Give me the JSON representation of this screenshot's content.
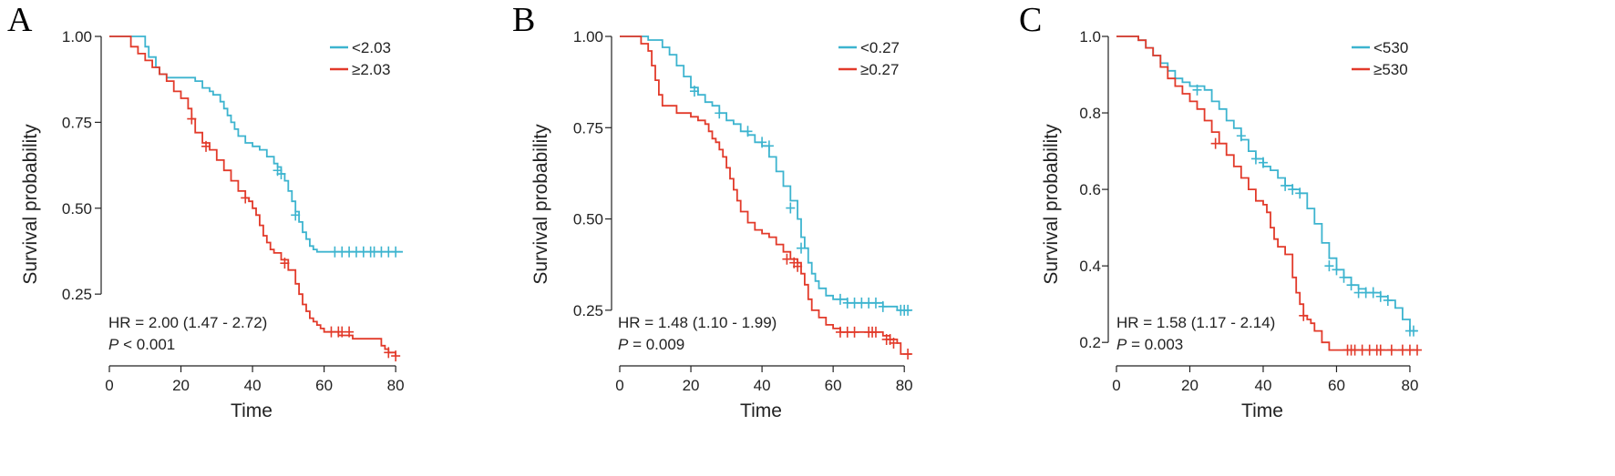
{
  "colors": {
    "low": "#3db4cf",
    "high": "#e23a2a",
    "axis": "#222222"
  },
  "chart_data": [
    {
      "type": "line",
      "panel": "A",
      "xlabel": "Time",
      "ylabel": "Survival probability",
      "xlim": [
        0,
        82
      ],
      "ylim": [
        0.065,
        1.0
      ],
      "xticks": [
        0,
        20,
        40,
        60,
        80
      ],
      "xtick_labels": [
        "0",
        "20",
        "40",
        "60",
        "80"
      ],
      "yticks": [
        1.0,
        0.75,
        0.5,
        0.25
      ],
      "ytick_labels": [
        "1.00",
        "0.75",
        "0.50",
        "0.25"
      ],
      "legend_position": "top-right",
      "series": [
        {
          "name": "<2.03",
          "color_key": "low",
          "x": [
            0,
            9,
            10,
            11,
            13,
            14,
            16,
            24,
            26,
            28,
            29,
            31,
            32,
            33,
            34,
            35,
            36,
            38,
            40,
            42,
            44,
            46,
            47,
            48,
            49,
            50,
            51,
            52,
            53,
            54,
            55,
            56,
            57,
            58,
            82
          ],
          "y": [
            1.0,
            1.0,
            0.97,
            0.94,
            0.91,
            0.89,
            0.88,
            0.87,
            0.85,
            0.84,
            0.83,
            0.81,
            0.79,
            0.77,
            0.75,
            0.73,
            0.71,
            0.69,
            0.68,
            0.67,
            0.65,
            0.63,
            0.62,
            0.6,
            0.58,
            0.55,
            0.52,
            0.49,
            0.46,
            0.43,
            0.41,
            0.39,
            0.38,
            0.373,
            0.373
          ],
          "censored": [
            [
              47,
              0.61
            ],
            [
              48,
              0.6
            ],
            [
              52,
              0.48
            ],
            [
              63,
              0.373
            ],
            [
              65,
              0.373
            ],
            [
              67,
              0.373
            ],
            [
              69,
              0.373
            ],
            [
              71,
              0.373
            ],
            [
              73,
              0.373
            ],
            [
              74,
              0.373
            ],
            [
              76,
              0.373
            ],
            [
              78,
              0.373
            ],
            [
              80,
              0.373
            ]
          ]
        },
        {
          "name": "≥2.03",
          "color_key": "high",
          "x": [
            0,
            4,
            6,
            8,
            10,
            12,
            14,
            16,
            18,
            20,
            22,
            23,
            24,
            26,
            28,
            30,
            32,
            34,
            36,
            38,
            39,
            40,
            41,
            42,
            43,
            44,
            45,
            46,
            48,
            50,
            52,
            53,
            54,
            55,
            56,
            57,
            58,
            59,
            60,
            62,
            64,
            66,
            68,
            72,
            76,
            77,
            78,
            80
          ],
          "y": [
            1.0,
            1.0,
            0.97,
            0.95,
            0.93,
            0.91,
            0.89,
            0.87,
            0.84,
            0.82,
            0.79,
            0.76,
            0.72,
            0.69,
            0.67,
            0.64,
            0.61,
            0.58,
            0.55,
            0.53,
            0.52,
            0.5,
            0.48,
            0.45,
            0.42,
            0.4,
            0.38,
            0.37,
            0.35,
            0.32,
            0.28,
            0.25,
            0.22,
            0.2,
            0.18,
            0.17,
            0.16,
            0.15,
            0.14,
            0.14,
            0.13,
            0.13,
            0.12,
            0.12,
            0.1,
            0.09,
            0.08,
            0.07
          ],
          "censored": [
            [
              23,
              0.76
            ],
            [
              27,
              0.68
            ],
            [
              38,
              0.53
            ],
            [
              49,
              0.34
            ],
            [
              62,
              0.14
            ],
            [
              64,
              0.14
            ],
            [
              65,
              0.14
            ],
            [
              67,
              0.14
            ],
            [
              78,
              0.08
            ],
            [
              80,
              0.07
            ]
          ]
        }
      ],
      "annotations": {
        "hr": "HR = 2.00 (1.47 -  2.72)",
        "p_label": "P",
        "p_value": " < 0.001"
      }
    },
    {
      "type": "line",
      "panel": "B",
      "xlabel": "Time",
      "ylabel": "Survival probability",
      "xlim": [
        0,
        82
      ],
      "ylim": [
        0.12,
        1.0
      ],
      "xticks": [
        0,
        20,
        40,
        60,
        80
      ],
      "xtick_labels": [
        "0",
        "20",
        "40",
        "60",
        "80"
      ],
      "yticks": [
        1.0,
        0.75,
        0.5,
        0.25
      ],
      "ytick_labels": [
        "1.00",
        "0.75",
        "0.50",
        "0.25"
      ],
      "legend_position": "top-right",
      "series": [
        {
          "name": "<0.27",
          "color_key": "low",
          "x": [
            0,
            4,
            8,
            12,
            14,
            16,
            18,
            20,
            22,
            24,
            26,
            28,
            30,
            32,
            34,
            36,
            38,
            40,
            42,
            44,
            46,
            48,
            50,
            51,
            52,
            53,
            54,
            55,
            56,
            58,
            60,
            62,
            64,
            66,
            70,
            74,
            78,
            82
          ],
          "y": [
            1.0,
            1.0,
            0.99,
            0.97,
            0.95,
            0.92,
            0.89,
            0.86,
            0.84,
            0.82,
            0.81,
            0.79,
            0.77,
            0.76,
            0.74,
            0.73,
            0.71,
            0.7,
            0.67,
            0.63,
            0.59,
            0.55,
            0.5,
            0.45,
            0.42,
            0.38,
            0.35,
            0.33,
            0.31,
            0.29,
            0.28,
            0.28,
            0.27,
            0.27,
            0.27,
            0.26,
            0.25,
            0.25
          ],
          "censored": [
            [
              21,
              0.85
            ],
            [
              28,
              0.79
            ],
            [
              36,
              0.74
            ],
            [
              40,
              0.71
            ],
            [
              42,
              0.7
            ],
            [
              48,
              0.53
            ],
            [
              51,
              0.42
            ],
            [
              62,
              0.28
            ],
            [
              64,
              0.27
            ],
            [
              66,
              0.27
            ],
            [
              68,
              0.27
            ],
            [
              70,
              0.27
            ],
            [
              72,
              0.27
            ],
            [
              74,
              0.26
            ],
            [
              79,
              0.25
            ],
            [
              80,
              0.25
            ],
            [
              81,
              0.25
            ]
          ]
        },
        {
          "name": "≥0.27",
          "color_key": "high",
          "x": [
            0,
            4,
            6,
            8,
            9,
            10,
            11,
            12,
            16,
            20,
            22,
            24,
            25,
            26,
            27,
            28,
            29,
            30,
            31,
            32,
            33,
            34,
            36,
            38,
            40,
            42,
            44,
            46,
            48,
            50,
            51,
            52,
            53,
            54,
            56,
            58,
            60,
            62,
            66,
            72,
            74,
            76,
            78,
            79,
            82
          ],
          "y": [
            1.0,
            1.0,
            0.98,
            0.96,
            0.92,
            0.88,
            0.84,
            0.81,
            0.79,
            0.78,
            0.77,
            0.76,
            0.74,
            0.72,
            0.71,
            0.69,
            0.67,
            0.64,
            0.61,
            0.58,
            0.55,
            0.52,
            0.49,
            0.47,
            0.46,
            0.45,
            0.43,
            0.41,
            0.39,
            0.38,
            0.35,
            0.32,
            0.28,
            0.25,
            0.23,
            0.21,
            0.2,
            0.19,
            0.19,
            0.19,
            0.18,
            0.17,
            0.16,
            0.13,
            0.13
          ],
          "censored": [
            [
              47,
              0.39
            ],
            [
              49,
              0.38
            ],
            [
              50,
              0.37
            ],
            [
              62,
              0.19
            ],
            [
              64,
              0.19
            ],
            [
              66,
              0.19
            ],
            [
              70,
              0.19
            ],
            [
              71,
              0.19
            ],
            [
              72,
              0.19
            ],
            [
              75,
              0.17
            ],
            [
              76,
              0.17
            ],
            [
              77,
              0.16
            ],
            [
              81,
              0.13
            ]
          ]
        }
      ],
      "annotations": {
        "hr": "HR = 1.48 (1.10 -  1.99)",
        "p_label": "P",
        "p_value": " = 0.009"
      }
    },
    {
      "type": "line",
      "panel": "C",
      "xlabel": "Time",
      "ylabel": "Survival probability",
      "xlim": [
        0,
        82
      ],
      "ylim": [
        0.16,
        1.0
      ],
      "xticks": [
        0,
        20,
        40,
        60,
        80
      ],
      "xtick_labels": [
        "0",
        "20",
        "40",
        "60",
        "80"
      ],
      "yticks": [
        1.0,
        0.8,
        0.6,
        0.4,
        0.2
      ],
      "ytick_labels": [
        "1.0",
        "0.8",
        "0.6",
        "0.4",
        "0.2"
      ],
      "legend_position": "top-right",
      "series": [
        {
          "name": "<530",
          "color_key": "low",
          "x": [
            0,
            4,
            6,
            8,
            10,
            12,
            14,
            16,
            18,
            20,
            24,
            26,
            28,
            30,
            32,
            34,
            36,
            38,
            40,
            42,
            44,
            46,
            48,
            50,
            52,
            54,
            56,
            58,
            60,
            62,
            64,
            66,
            68,
            70,
            72,
            74,
            76,
            78,
            80,
            82
          ],
          "y": [
            1.0,
            1.0,
            0.99,
            0.97,
            0.95,
            0.93,
            0.91,
            0.89,
            0.88,
            0.87,
            0.86,
            0.83,
            0.81,
            0.78,
            0.76,
            0.73,
            0.7,
            0.68,
            0.66,
            0.65,
            0.63,
            0.61,
            0.6,
            0.59,
            0.55,
            0.51,
            0.46,
            0.42,
            0.39,
            0.37,
            0.35,
            0.34,
            0.33,
            0.33,
            0.32,
            0.31,
            0.29,
            0.26,
            0.23,
            0.23
          ],
          "censored": [
            [
              22,
              0.86
            ],
            [
              34,
              0.74
            ],
            [
              38,
              0.68
            ],
            [
              40,
              0.67
            ],
            [
              46,
              0.61
            ],
            [
              48,
              0.6
            ],
            [
              50,
              0.59
            ],
            [
              58,
              0.4
            ],
            [
              60,
              0.39
            ],
            [
              62,
              0.37
            ],
            [
              64,
              0.35
            ],
            [
              66,
              0.33
            ],
            [
              68,
              0.33
            ],
            [
              70,
              0.33
            ],
            [
              72,
              0.32
            ],
            [
              74,
              0.31
            ],
            [
              80,
              0.23
            ],
            [
              81,
              0.23
            ]
          ]
        },
        {
          "name": "≥530",
          "color_key": "high",
          "x": [
            0,
            4,
            6,
            8,
            10,
            12,
            14,
            16,
            18,
            20,
            22,
            24,
            26,
            28,
            30,
            32,
            34,
            36,
            38,
            40,
            41,
            42,
            43,
            44,
            46,
            48,
            49,
            50,
            51,
            52,
            53,
            54,
            56,
            58,
            60,
            62,
            70,
            82
          ],
          "y": [
            1.0,
            1.0,
            0.99,
            0.97,
            0.95,
            0.92,
            0.89,
            0.87,
            0.85,
            0.83,
            0.81,
            0.78,
            0.75,
            0.72,
            0.69,
            0.66,
            0.63,
            0.6,
            0.57,
            0.56,
            0.54,
            0.5,
            0.47,
            0.45,
            0.43,
            0.37,
            0.33,
            0.3,
            0.27,
            0.26,
            0.25,
            0.23,
            0.2,
            0.18,
            0.18,
            0.18,
            0.18,
            0.18
          ],
          "censored": [
            [
              27,
              0.72
            ],
            [
              51,
              0.27
            ],
            [
              63,
              0.18
            ],
            [
              64,
              0.18
            ],
            [
              65,
              0.18
            ],
            [
              67,
              0.18
            ],
            [
              69,
              0.18
            ],
            [
              71,
              0.18
            ],
            [
              72,
              0.18
            ],
            [
              75,
              0.18
            ],
            [
              78,
              0.18
            ],
            [
              80,
              0.18
            ],
            [
              82,
              0.18
            ]
          ]
        }
      ],
      "annotations": {
        "hr": "HR = 1.58 (1.17 -  2.14)",
        "p_label": "P",
        "p_value": " = 0.003"
      }
    }
  ]
}
